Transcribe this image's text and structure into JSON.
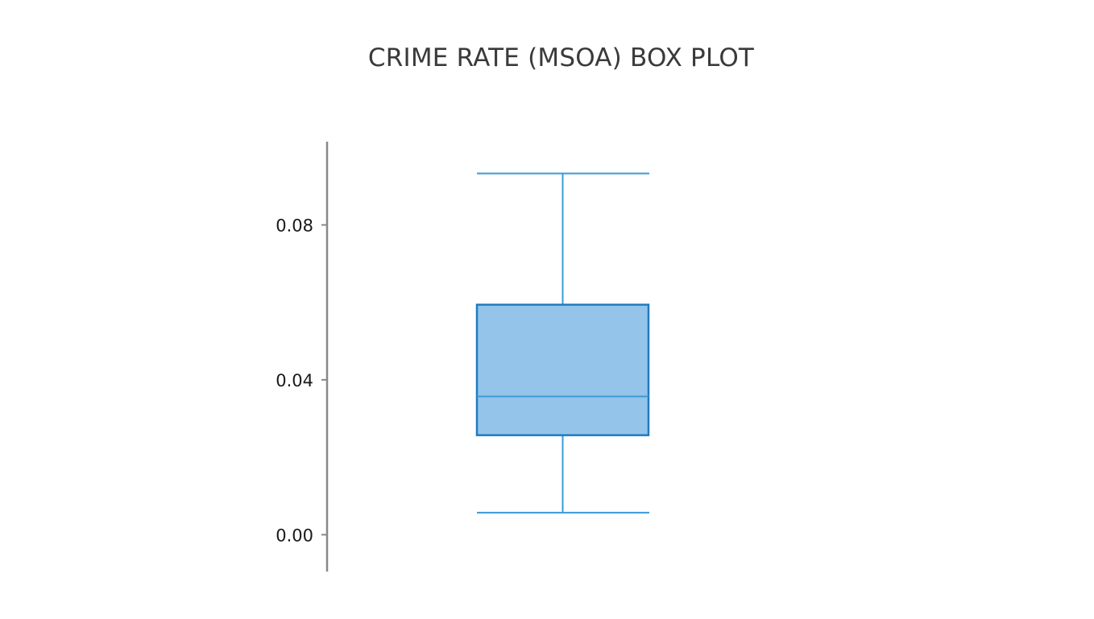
{
  "chart_data": {
    "type": "box",
    "title": "CRIME RATE (MSOA) BOX PLOT",
    "xlabel": "",
    "ylabel": "",
    "ylim": [
      -0.0095,
      0.1015
    ],
    "y_ticks": [
      0.0,
      0.04,
      0.08
    ],
    "y_tick_labels": [
      "0.00",
      "0.04",
      "0.08"
    ],
    "grid": false,
    "legend": "none",
    "box": {
      "whisker_low": 0.0057,
      "q1": 0.0257,
      "median": 0.0357,
      "q3": 0.0594,
      "whisker_high": 0.0933
    },
    "colors": {
      "box_fill": "#94c4e9",
      "box_edge": "#1f7bc1",
      "whisker": "#3a9ad9",
      "axis": "#888888",
      "title": "#3a3a3a"
    }
  }
}
